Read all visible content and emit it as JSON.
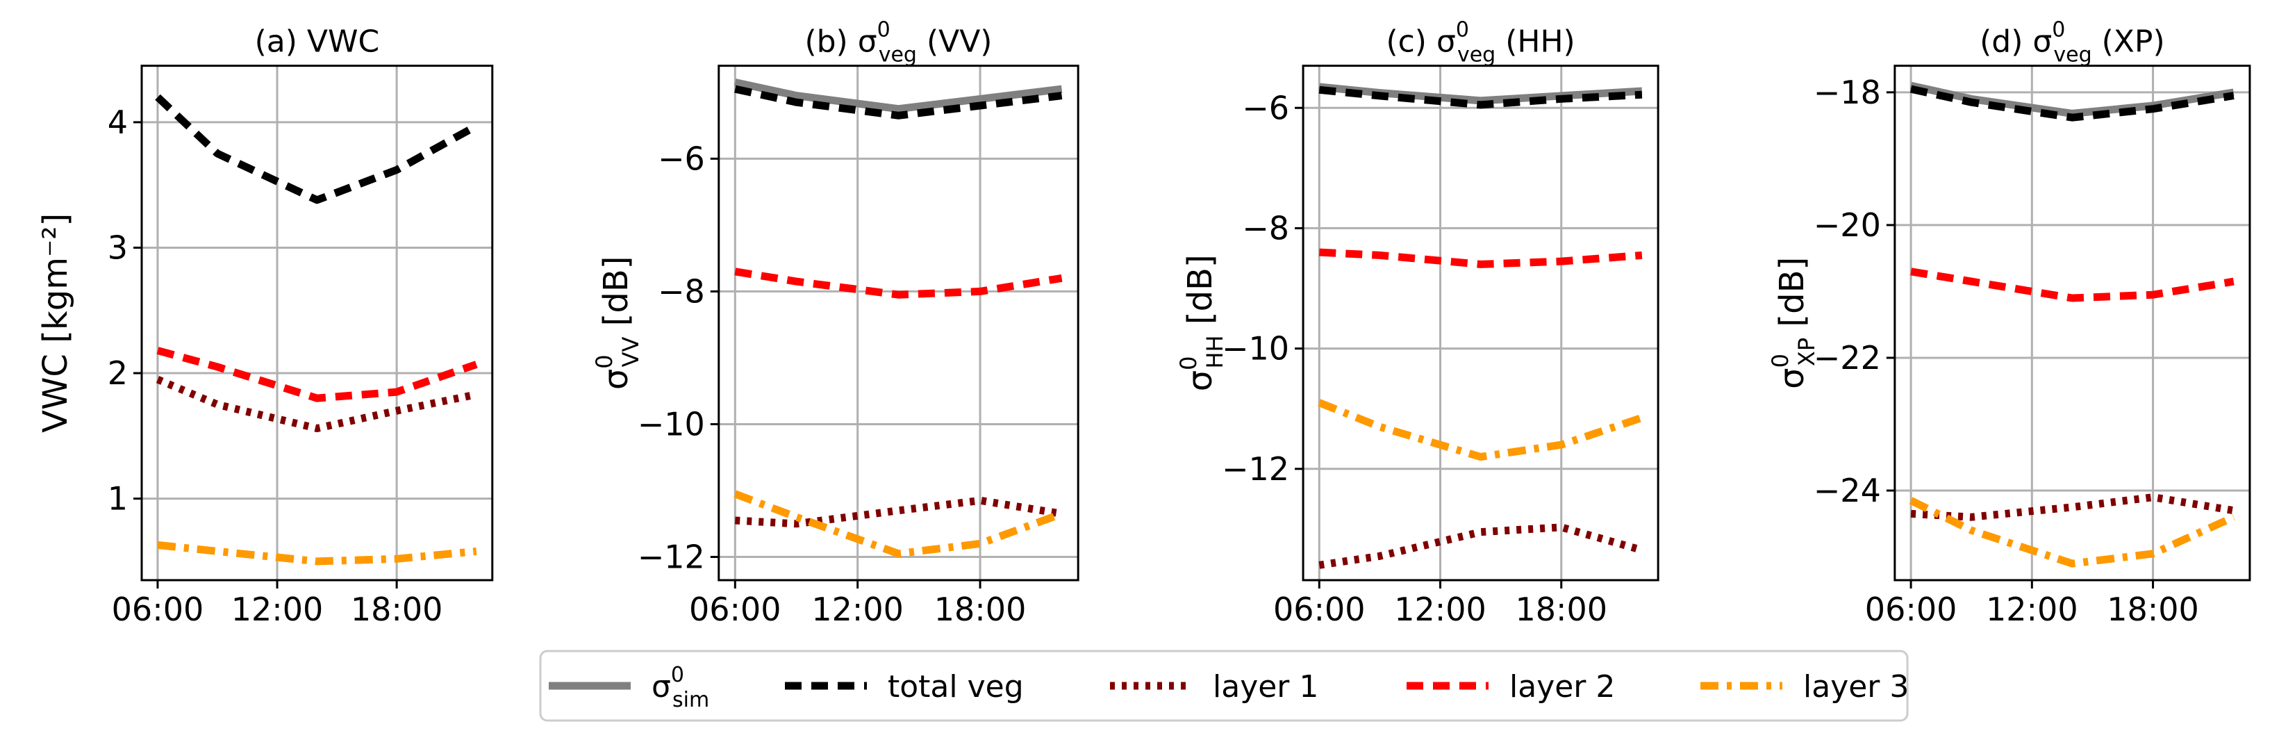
{
  "chart_data": [
    {
      "type": "line",
      "id": "a",
      "title": "(a) VWC",
      "ylabel": "VWC [kgm⁻²]",
      "xlim": [
        5.2,
        22.8
      ],
      "ylim": [
        0.35,
        4.45
      ],
      "yticks": [
        1,
        2,
        3,
        4
      ],
      "ytick_labels": [
        "1",
        "2",
        "3",
        "4"
      ],
      "xticks": [
        6,
        12,
        18
      ],
      "xtick_labels": [
        "06:00",
        "12:00",
        "18:00"
      ],
      "x": [
        6,
        9,
        14,
        18,
        22
      ],
      "series": [
        {
          "key": "total",
          "values": [
            4.2,
            3.75,
            3.38,
            3.62,
            3.97
          ]
        },
        {
          "key": "l1",
          "values": [
            1.95,
            1.75,
            1.56,
            1.7,
            1.83
          ]
        },
        {
          "key": "l2",
          "values": [
            2.18,
            2.05,
            1.8,
            1.85,
            2.07
          ]
        },
        {
          "key": "l3",
          "values": [
            0.63,
            0.58,
            0.5,
            0.52,
            0.58
          ]
        }
      ]
    },
    {
      "type": "line",
      "id": "b",
      "title_pre": "(b) σ",
      "title_sub": "veg",
      "title_sup": "0",
      "title_post": " (VV)",
      "ylabel_main": "σ",
      "ylabel_sub": "VV",
      "ylabel_sup": "0",
      "ylabel_unit": " [dB]",
      "xlim": [
        5.2,
        22.8
      ],
      "ylim": [
        -12.35,
        -4.6
      ],
      "yticks": [
        -12,
        -10,
        -8,
        -6
      ],
      "ytick_labels": [
        "−12",
        "−10",
        "−8",
        "−6"
      ],
      "xticks": [
        6,
        12,
        18
      ],
      "xtick_labels": [
        "06:00",
        "12:00",
        "18:00"
      ],
      "x": [
        6,
        9,
        14,
        18,
        22
      ],
      "series": [
        {
          "key": "sim",
          "values": [
            -4.85,
            -5.05,
            -5.25,
            -5.1,
            -4.95
          ]
        },
        {
          "key": "total",
          "values": [
            -4.95,
            -5.15,
            -5.35,
            -5.2,
            -5.05
          ]
        },
        {
          "key": "l1",
          "values": [
            -11.45,
            -11.5,
            -11.3,
            -11.15,
            -11.35
          ]
        },
        {
          "key": "l2",
          "values": [
            -7.7,
            -7.85,
            -8.05,
            -8.0,
            -7.8
          ]
        },
        {
          "key": "l3",
          "values": [
            -11.05,
            -11.4,
            -11.95,
            -11.8,
            -11.35
          ]
        }
      ]
    },
    {
      "type": "line",
      "id": "c",
      "title_pre": "(c) σ",
      "title_sub": "veg",
      "title_sup": "0",
      "title_post": " (HH)",
      "ylabel_main": "σ",
      "ylabel_sub": "HH",
      "ylabel_sup": "0",
      "ylabel_unit": " [dB]",
      "xlim": [
        5.2,
        22.8
      ],
      "ylim": [
        -13.85,
        -5.3
      ],
      "yticks": [
        -12,
        -10,
        -8,
        -6
      ],
      "ytick_labels": [
        "−12",
        "−10",
        "−8",
        "−6"
      ],
      "xticks": [
        6,
        12,
        18
      ],
      "xtick_labels": [
        "06:00",
        "12:00",
        "18:00"
      ],
      "x": [
        6,
        9,
        14,
        18,
        22
      ],
      "series": [
        {
          "key": "sim",
          "values": [
            -5.65,
            -5.75,
            -5.88,
            -5.8,
            -5.72
          ]
        },
        {
          "key": "total",
          "values": [
            -5.7,
            -5.8,
            -5.95,
            -5.85,
            -5.78
          ]
        },
        {
          "key": "l1",
          "values": [
            -13.6,
            -13.45,
            -13.05,
            -12.97,
            -13.35
          ]
        },
        {
          "key": "l2",
          "values": [
            -8.4,
            -8.45,
            -8.6,
            -8.55,
            -8.45
          ]
        },
        {
          "key": "l3",
          "values": [
            -10.9,
            -11.3,
            -11.8,
            -11.6,
            -11.15
          ]
        }
      ]
    },
    {
      "type": "line",
      "id": "d",
      "title_pre": "(d) σ",
      "title_sub": "veg",
      "title_sup": "0",
      "title_post": " (XP)",
      "ylabel_main": "σ",
      "ylabel_sub": "XP",
      "ylabel_sup": "0",
      "ylabel_unit": " [dB]",
      "xlim": [
        5.2,
        22.8
      ],
      "ylim": [
        -25.35,
        -17.6
      ],
      "yticks": [
        -24,
        -22,
        -20,
        -18
      ],
      "ytick_labels": [
        "−24",
        "−22",
        "−20",
        "−18"
      ],
      "xticks": [
        6,
        12,
        18
      ],
      "xtick_labels": [
        "06:00",
        "12:00",
        "18:00"
      ],
      "x": [
        6,
        9,
        14,
        18,
        22
      ],
      "series": [
        {
          "key": "sim",
          "values": [
            -17.9,
            -18.1,
            -18.32,
            -18.2,
            -18.0
          ]
        },
        {
          "key": "total",
          "values": [
            -17.95,
            -18.15,
            -18.38,
            -18.25,
            -18.05
          ]
        },
        {
          "key": "l1",
          "values": [
            -24.35,
            -24.4,
            -24.25,
            -24.1,
            -24.3
          ]
        },
        {
          "key": "l2",
          "values": [
            -20.7,
            -20.85,
            -21.1,
            -21.05,
            -20.85
          ]
        },
        {
          "key": "l3",
          "values": [
            -24.15,
            -24.6,
            -25.1,
            -24.95,
            -24.4
          ]
        }
      ]
    }
  ],
  "styles": {
    "sim": {
      "color": "#808080",
      "dash": "none"
    },
    "total": {
      "color": "#000000",
      "dash": "dashed"
    },
    "l1": {
      "color": "#800000",
      "dash": "dotted"
    },
    "l2": {
      "color": "#ff0000",
      "dash": "dashed"
    },
    "l3": {
      "color": "#ff9900",
      "dash": "dashdot"
    }
  },
  "legend": {
    "sim_main": "σ",
    "sim_sub": "sim",
    "sim_sup": "0",
    "items": [
      {
        "key": "total",
        "label": "total veg"
      },
      {
        "key": "l1",
        "label": "layer 1"
      },
      {
        "key": "l2",
        "label": "layer 2"
      },
      {
        "key": "l3",
        "label": "layer 3"
      }
    ]
  }
}
